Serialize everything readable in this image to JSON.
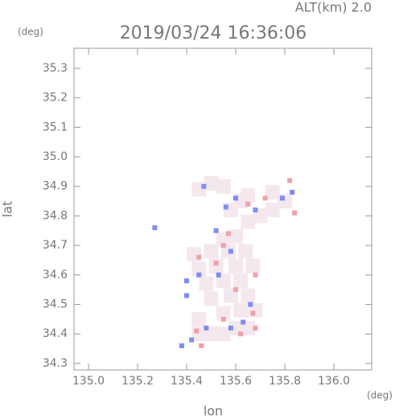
{
  "chart_data": {
    "type": "scatter",
    "title": "2019/03/24 16:36:06",
    "subtitle": "ALT(km) 2.0",
    "x_label": "lon",
    "y_label": "lat",
    "x_unit": "(deg)",
    "y_unit": "(deg)",
    "xlim": [
      134.941,
      136.154
    ],
    "ylim": [
      34.278,
      35.368
    ],
    "xticks": [
      {
        "value": 135.0,
        "label": "135.0"
      },
      135.2,
      135.4,
      135.6,
      135.8,
      {
        "value": 136.0,
        "label": "136.0"
      }
    ],
    "yticks": [
      34.3,
      34.4,
      34.5,
      34.6,
      34.7,
      34.8,
      34.9,
      {
        "value": 35.0,
        "label": "35.0"
      },
      35.1,
      35.2,
      35.3
    ],
    "grid": false,
    "series": [
      {
        "color": "#f4e8ee",
        "x": [
          135.45,
          135.5,
          135.55,
          135.6,
          135.65,
          135.45,
          135.55,
          135.62,
          135.68,
          135.5,
          135.58,
          135.65,
          135.48,
          135.55,
          135.62,
          135.45,
          135.52,
          135.6,
          135.67,
          135.43,
          135.5,
          135.57,
          135.64,
          135.55,
          135.6,
          135.65,
          135.7,
          135.75,
          135.8,
          135.75,
          135.65,
          135.55,
          135.5,
          135.45,
          135.62,
          135.58
        ],
        "values": [
          34.4,
          34.4,
          34.4,
          34.42,
          34.42,
          34.45,
          34.47,
          34.48,
          34.48,
          34.52,
          34.53,
          34.53,
          34.57,
          34.58,
          34.58,
          34.62,
          34.63,
          34.63,
          34.63,
          34.67,
          34.68,
          34.68,
          34.68,
          34.72,
          34.73,
          34.78,
          34.8,
          34.82,
          34.85,
          34.88,
          34.87,
          34.9,
          34.91,
          34.89,
          34.85,
          34.82
        ]
      },
      {
        "color": "#7f8cf0",
        "x": [
          135.38,
          135.42,
          135.48,
          135.58,
          135.63,
          135.66,
          135.4,
          135.45,
          135.53,
          135.58,
          135.52,
          135.56,
          135.6,
          135.68,
          135.79,
          135.83,
          135.27,
          135.47,
          135.4
        ],
        "values": [
          34.36,
          34.38,
          34.42,
          34.42,
          34.44,
          34.5,
          34.53,
          34.6,
          34.6,
          34.68,
          34.75,
          34.83,
          34.86,
          34.82,
          34.86,
          34.88,
          34.76,
          34.9,
          34.58
        ]
      },
      {
        "color": "#f0a0a8",
        "x": [
          135.46,
          135.44,
          135.62,
          135.68,
          135.55,
          135.67,
          135.6,
          135.45,
          135.55,
          135.57,
          135.65,
          135.72,
          135.82,
          135.84,
          135.52,
          135.68
        ],
        "values": [
          34.36,
          34.41,
          34.4,
          34.42,
          34.45,
          34.47,
          34.55,
          34.66,
          34.7,
          34.74,
          34.84,
          34.86,
          34.92,
          34.81,
          34.64,
          34.6
        ]
      }
    ]
  }
}
